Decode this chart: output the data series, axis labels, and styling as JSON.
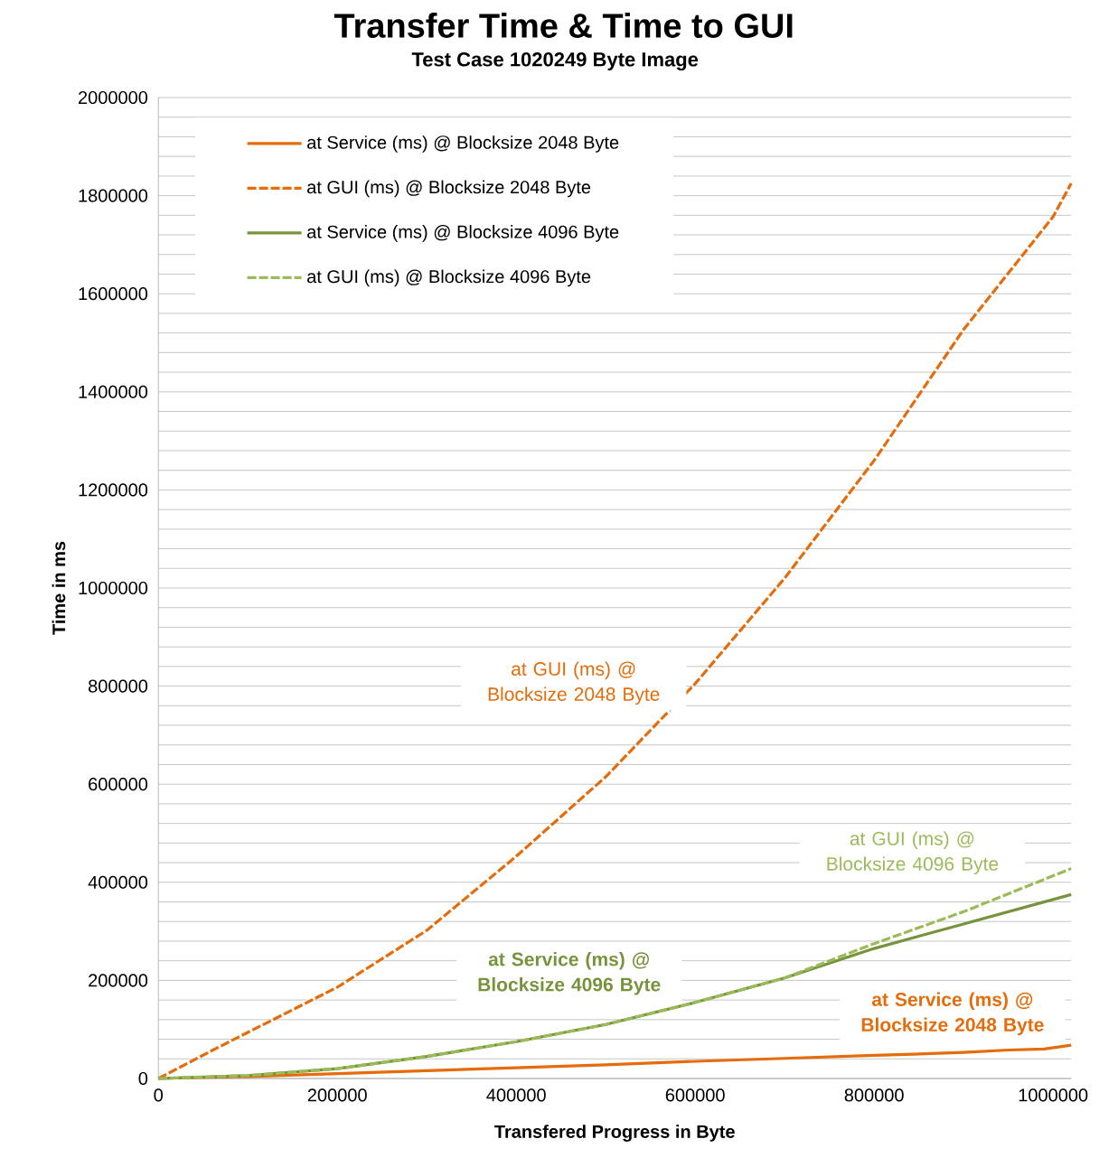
{
  "chart_data": {
    "type": "line",
    "title": "Transfer Time & Time to GUI",
    "subtitle": "Test Case 1020249 Byte Image",
    "xlabel": "Transfered Progress in Byte",
    "ylabel": "Time in ms",
    "xlim": [
      0,
      1020249
    ],
    "xticks": [
      0,
      200000,
      400000,
      600000,
      800000,
      1000000
    ],
    "ylim": [
      0,
      2000000
    ],
    "yticks": [
      0,
      {
        "value": 40000,
        "label": null
      },
      {
        "value": 80000,
        "label": null
      },
      {
        "value": 120000,
        "label": null
      },
      {
        "value": 160000,
        "label": null
      },
      200000,
      {
        "value": 240000,
        "label": null
      },
      {
        "value": 280000,
        "label": null
      },
      {
        "value": 320000,
        "label": null
      },
      {
        "value": 360000,
        "label": null
      },
      400000,
      {
        "value": 440000,
        "label": null
      },
      {
        "value": 480000,
        "label": null
      },
      {
        "value": 520000,
        "label": null
      },
      {
        "value": 560000,
        "label": null
      },
      600000,
      {
        "value": 640000,
        "label": null
      },
      {
        "value": 680000,
        "label": null
      },
      {
        "value": 720000,
        "label": null
      },
      {
        "value": 760000,
        "label": null
      },
      800000,
      {
        "value": 840000,
        "label": null
      },
      {
        "value": 880000,
        "label": null
      },
      {
        "value": 920000,
        "label": null
      },
      {
        "value": 960000,
        "label": null
      },
      1000000,
      {
        "value": 1040000,
        "label": null
      },
      {
        "value": 1080000,
        "label": null
      },
      {
        "value": 1120000,
        "label": null
      },
      {
        "value": 1160000,
        "label": null
      },
      1200000,
      {
        "value": 1240000,
        "label": null
      },
      {
        "value": 1280000,
        "label": null
      },
      {
        "value": 1320000,
        "label": null
      },
      {
        "value": 1360000,
        "label": null
      },
      1400000,
      {
        "value": 1440000,
        "label": null
      },
      {
        "value": 1480000,
        "label": null
      },
      {
        "value": 1520000,
        "label": null
      },
      {
        "value": 1560000,
        "label": null
      },
      1600000,
      {
        "value": 1640000,
        "label": null
      },
      {
        "value": 1680000,
        "label": null
      },
      {
        "value": 1720000,
        "label": null
      },
      {
        "value": 1760000,
        "label": null
      },
      1800000,
      {
        "value": 1840000,
        "label": null
      },
      {
        "value": 1880000,
        "label": null
      },
      {
        "value": 1920000,
        "label": null
      },
      {
        "value": 1960000,
        "label": null
      },
      2000000
    ],
    "grid": "y",
    "legend": "top left",
    "series": [
      {
        "name": "at Service (ms) @ Blocksize 2048 Byte",
        "color": "#e46c0a",
        "line_style": "solid",
        "x": [
          0,
          100000,
          200000,
          300000,
          400000,
          500000,
          600000,
          700000,
          800000,
          900000,
          950000,
          990000,
          1020249
        ],
        "values": [
          0,
          4000,
          10000,
          16000,
          22000,
          28000,
          35000,
          41000,
          47000,
          53000,
          58000,
          60000,
          68000
        ]
      },
      {
        "name": "at GUI (ms) @ Blocksize 2048 Byte",
        "color": "#e46c0a",
        "line_style": "dashed",
        "x": [
          0,
          60000,
          100000,
          200000,
          300000,
          400000,
          500000,
          600000,
          700000,
          800000,
          900000,
          1000000,
          1020249
        ],
        "values": [
          0,
          57000,
          94000,
          186000,
          302000,
          453000,
          615000,
          805000,
          1020000,
          1260000,
          1527000,
          1757000,
          1825000
        ]
      },
      {
        "name": "at Service (ms) @ Blocksize 4096 Byte",
        "color": "#77933c",
        "line_style": "solid",
        "x": [
          0,
          100000,
          200000,
          300000,
          400000,
          500000,
          600000,
          700000,
          800000,
          900000,
          1020249
        ],
        "values": [
          0,
          6000,
          20000,
          45000,
          75000,
          110000,
          155000,
          205000,
          265000,
          315000,
          375000
        ]
      },
      {
        "name": "at GUI (ms) @ Blocksize 4096 Byte",
        "color": "#9bbb59",
        "line_style": "dashed",
        "x": [
          0,
          100000,
          200000,
          300000,
          400000,
          500000,
          600000,
          700000,
          800000,
          900000,
          1020249
        ],
        "values": [
          0,
          6000,
          20000,
          45000,
          75000,
          110000,
          155000,
          205000,
          275000,
          340000,
          428000
        ]
      }
    ],
    "annotations": [
      "at Service (ms) @ Blocksize 2048 Byte",
      "at GUI (ms) @ Blocksize 2048 Byte",
      "at Service (ms) @ Blocksize 4096 Byte",
      "at GUI (ms) @ Blocksize 4096 Byte"
    ]
  }
}
